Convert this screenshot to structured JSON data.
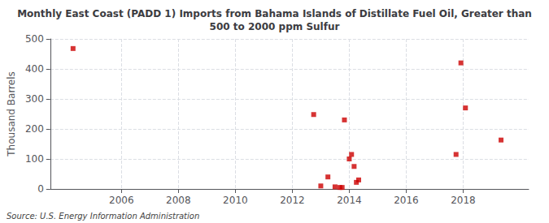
{
  "chart_data": {
    "type": "scatter",
    "title": "Monthly East Coast (PADD 1) Imports from Bahama Islands of Distillate Fuel Oil, Greater than\n500 to 2000 ppm Sulfur",
    "ylabel": "Thousand Barrels",
    "source": "Source: U.S. Energy Information Administration",
    "x": [
      2004.3,
      2012.75,
      2013.0,
      2013.25,
      2013.5,
      2013.67,
      2013.75,
      2013.83,
      2014.0,
      2014.08,
      2014.17,
      2014.25,
      2014.33,
      2017.75,
      2017.92,
      2018.08,
      2019.33
    ],
    "values": [
      468,
      248,
      10,
      40,
      7,
      5,
      5,
      230,
      100,
      115,
      75,
      22,
      30,
      115,
      420,
      270,
      163
    ],
    "color": "#cc0000",
    "marker": "square",
    "xlim": [
      2003.5,
      2020.3
    ],
    "xticks": [
      2006,
      2008,
      2010,
      2012,
      2014,
      2016,
      2018
    ],
    "ylim": [
      0,
      500
    ],
    "yticks": [
      0,
      100,
      200,
      300,
      400,
      500
    ],
    "grid": true
  }
}
